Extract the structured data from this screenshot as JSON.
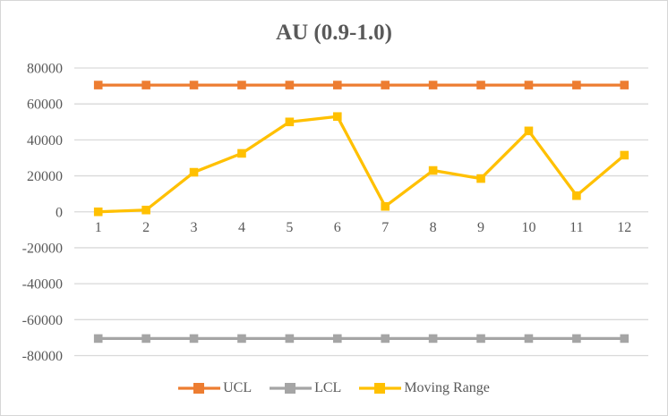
{
  "chart_data": {
    "type": "line",
    "title": "AU (0.9-1.0)",
    "categories": [
      "1",
      "2",
      "3",
      "4",
      "5",
      "6",
      "7",
      "8",
      "9",
      "10",
      "11",
      "12"
    ],
    "series": [
      {
        "name": "UCL",
        "color": "#ED7D31",
        "values": [
          70500,
          70500,
          70500,
          70500,
          70500,
          70500,
          70500,
          70500,
          70500,
          70500,
          70500,
          70500
        ]
      },
      {
        "name": "LCL",
        "color": "#A5A5A5",
        "values": [
          -70500,
          -70500,
          -70500,
          -70500,
          -70500,
          -70500,
          -70500,
          -70500,
          -70500,
          -70500,
          -70500,
          -70500
        ]
      },
      {
        "name": "Moving Range",
        "color": "#FFC000",
        "values": [
          0,
          1000,
          22000,
          32500,
          50000,
          53000,
          3000,
          23000,
          18500,
          45000,
          9000,
          31500
        ]
      }
    ],
    "xlabel": "",
    "ylabel": "",
    "ylim": [
      -80000,
      80000
    ],
    "ytick_step": 20000,
    "yticks": [
      "80000",
      "60000",
      "40000",
      "20000",
      "0",
      "-20000",
      "-40000",
      "-60000",
      "-80000"
    ],
    "grid": "horizontal",
    "marker": "square",
    "legend_position": "bottom",
    "colors": {
      "grid": "#D9D9D9",
      "tick_text": "#595959",
      "title_text": "#595959",
      "border": "#D6D6D6",
      "background": "#FFFFFF"
    }
  }
}
